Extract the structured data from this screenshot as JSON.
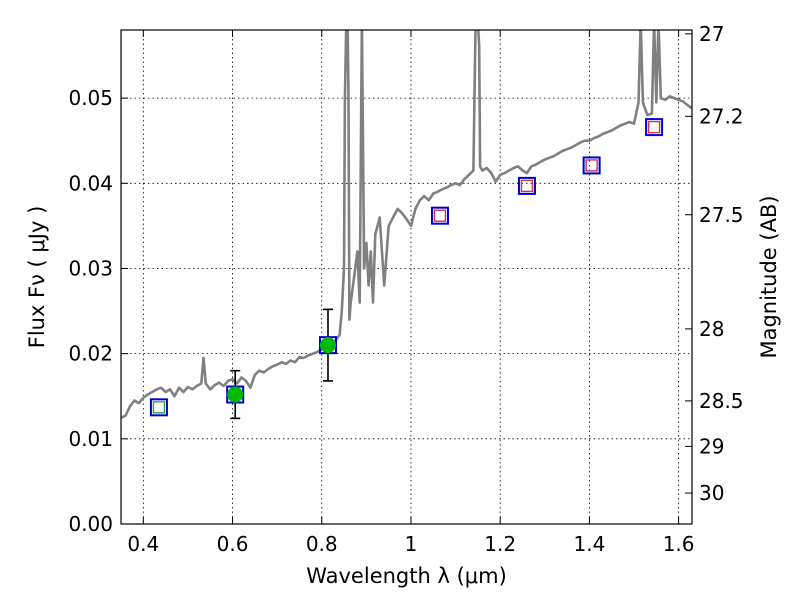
{
  "chart_data": {
    "type": "scatter",
    "title": "",
    "xlabel": "Wavelength  λ (μm)",
    "ylabel": "Flux  Fν  ( μJy )",
    "y2label": "Magnitude (AB)",
    "xlim": [
      0.35,
      1.63
    ],
    "ylim": [
      0.0,
      0.058
    ],
    "grid": true,
    "x_ticks": [
      0.4,
      0.6,
      0.8,
      1.0,
      1.2,
      1.4,
      1.6
    ],
    "x_tick_labels": [
      "0.4",
      "0.6",
      "0.8",
      "1",
      "1.2",
      "1.4",
      "1.6"
    ],
    "y_ticks": [
      0.0,
      0.01,
      0.02,
      0.03,
      0.04,
      0.05
    ],
    "y_tick_labels": [
      "0.00",
      "0.01",
      "0.02",
      "0.03",
      "0.04",
      "0.05"
    ],
    "y2_ticks": [
      27,
      27.2,
      27.5,
      28,
      28.5,
      29,
      30
    ],
    "y2_tick_labels": [
      "27",
      "27.2",
      "27.5",
      "28",
      "28.5",
      "29",
      "30"
    ],
    "y2_zero_point_mag": 23.9,
    "colors": {
      "spectrum": "#808080",
      "observed": "#00bb00",
      "model_box": "#0000cc",
      "predicted": "#cc3355",
      "predicted_green": "#22aa55",
      "errorbar": "#000000",
      "grid": "#000000"
    },
    "series": [
      {
        "name": "model spectrum",
        "kind": "line",
        "x": [
          0.35,
          0.36,
          0.37,
          0.38,
          0.39,
          0.4,
          0.41,
          0.42,
          0.43,
          0.44,
          0.45,
          0.46,
          0.47,
          0.48,
          0.49,
          0.5,
          0.51,
          0.52,
          0.53,
          0.535,
          0.54,
          0.55,
          0.56,
          0.57,
          0.58,
          0.59,
          0.6,
          0.61,
          0.62,
          0.63,
          0.64,
          0.65,
          0.66,
          0.67,
          0.68,
          0.69,
          0.7,
          0.71,
          0.72,
          0.73,
          0.74,
          0.75,
          0.76,
          0.77,
          0.78,
          0.79,
          0.8,
          0.81,
          0.82,
          0.83,
          0.84,
          0.845,
          0.85,
          0.852,
          0.855,
          0.858,
          0.86,
          0.862,
          0.865,
          0.87,
          0.875,
          0.88,
          0.885,
          0.89,
          0.895,
          0.9,
          0.905,
          0.91,
          0.915,
          0.92,
          0.93,
          0.94,
          0.95,
          0.96,
          0.97,
          0.98,
          0.99,
          1.0,
          1.01,
          1.02,
          1.03,
          1.04,
          1.05,
          1.06,
          1.07,
          1.08,
          1.09,
          1.1,
          1.11,
          1.12,
          1.13,
          1.14,
          1.145,
          1.15,
          1.153,
          1.155,
          1.16,
          1.17,
          1.18,
          1.19,
          1.2,
          1.21,
          1.22,
          1.23,
          1.24,
          1.25,
          1.26,
          1.27,
          1.28,
          1.29,
          1.3,
          1.31,
          1.32,
          1.33,
          1.34,
          1.35,
          1.36,
          1.37,
          1.38,
          1.39,
          1.4,
          1.41,
          1.42,
          1.43,
          1.44,
          1.45,
          1.46,
          1.47,
          1.48,
          1.49,
          1.5,
          1.51,
          1.515,
          1.52,
          1.53,
          1.54,
          1.545,
          1.55,
          1.555,
          1.56,
          1.57,
          1.58,
          1.59,
          1.6,
          1.61,
          1.62,
          1.63
        ],
        "y": [
          0.0125,
          0.0127,
          0.0138,
          0.0145,
          0.0142,
          0.0148,
          0.0152,
          0.0155,
          0.0158,
          0.016,
          0.0155,
          0.0158,
          0.015,
          0.016,
          0.0155,
          0.0161,
          0.0158,
          0.0162,
          0.0165,
          0.0195,
          0.0165,
          0.0158,
          0.0163,
          0.0166,
          0.0162,
          0.0168,
          0.017,
          0.0165,
          0.0172,
          0.0168,
          0.016,
          0.0175,
          0.018,
          0.0178,
          0.0182,
          0.0185,
          0.0187,
          0.019,
          0.0188,
          0.0192,
          0.019,
          0.0196,
          0.0195,
          0.0198,
          0.02,
          0.0202,
          0.0205,
          0.0208,
          0.0211,
          0.0215,
          0.0222,
          0.025,
          0.03,
          0.05,
          0.059,
          0.059,
          0.05,
          0.024,
          0.026,
          0.028,
          0.03,
          0.032,
          0.026,
          0.059,
          0.03,
          0.033,
          0.028,
          0.032,
          0.026,
          0.034,
          0.036,
          0.028,
          0.035,
          0.036,
          0.037,
          0.0365,
          0.0358,
          0.035,
          0.037,
          0.038,
          0.0385,
          0.038,
          0.0388,
          0.039,
          0.0393,
          0.0395,
          0.0398,
          0.04,
          0.0398,
          0.0405,
          0.041,
          0.0415,
          0.059,
          0.059,
          0.056,
          0.042,
          0.0415,
          0.0418,
          0.0412,
          0.0402,
          0.041,
          0.0412,
          0.0415,
          0.0418,
          0.042,
          0.0415,
          0.0412,
          0.042,
          0.0422,
          0.0425,
          0.0428,
          0.043,
          0.0432,
          0.0435,
          0.0438,
          0.044,
          0.0442,
          0.0445,
          0.0448,
          0.045,
          0.045,
          0.0453,
          0.0455,
          0.0458,
          0.046,
          0.0462,
          0.0465,
          0.0468,
          0.047,
          0.0472,
          0.047,
          0.0495,
          0.059,
          0.0495,
          0.048,
          0.0482,
          0.059,
          0.0495,
          0.059,
          0.05,
          0.0498,
          0.0502,
          0.05,
          0.0498,
          0.0496,
          0.0492,
          0.0488
        ]
      },
      {
        "name": "observed photometry",
        "kind": "points",
        "marker": "circle",
        "x": [
          0.606,
          0.814
        ],
        "y": [
          0.0152,
          0.021
        ],
        "yerr": [
          0.0028,
          0.0042
        ]
      },
      {
        "name": "model photometry",
        "kind": "points",
        "marker": "square",
        "x": [
          0.435,
          0.606,
          0.814,
          1.065,
          1.26,
          1.405,
          1.545
        ],
        "y": [
          0.0137,
          0.0152,
          0.021,
          0.0362,
          0.0397,
          0.0421,
          0.0466
        ]
      },
      {
        "name": "predicted photometry",
        "kind": "points",
        "marker": "square-small",
        "x": [
          0.435,
          1.065,
          1.26,
          1.405,
          1.545
        ],
        "y": [
          0.0137,
          0.0362,
          0.0397,
          0.0421,
          0.0466
        ]
      }
    ]
  }
}
